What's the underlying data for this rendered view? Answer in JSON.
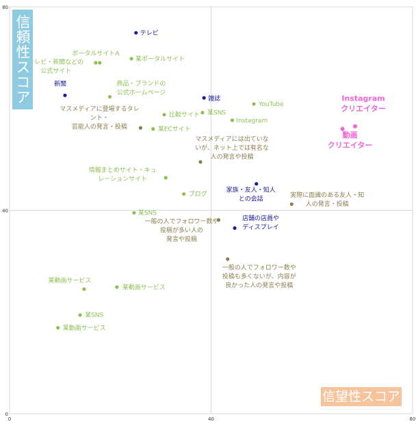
{
  "badges": {
    "y": "信頼性スコア",
    "x": "信望性スコア"
  },
  "chart_data": {
    "type": "scatter",
    "xlim": [
      0,
      80
    ],
    "ylim": [
      0,
      80
    ],
    "x_ticks": [
      "0",
      "40",
      "80"
    ],
    "y_ticks": [
      "0",
      "40",
      "80"
    ],
    "reference_lines": {
      "x": 40,
      "y": 40
    },
    "colors": {
      "green": "#8cc152",
      "navy": "#1a1a9e",
      "olive": "#8b7d4f",
      "pink": "#f263d8"
    },
    "points": [
      {
        "x": 25.1,
        "y": 74.9,
        "color": "navy",
        "label": [
          "テレビ"
        ]
      },
      {
        "x": 17.1,
        "y": 69.0,
        "color": "green",
        "label": [
          "ポータルサイトA"
        ]
      },
      {
        "x": 24.2,
        "y": 69.8,
        "color": "green",
        "label": [
          "某ポータルサイト"
        ]
      },
      {
        "x": 17.9,
        "y": 69.0,
        "color": "green",
        "label": [
          "テレビ・新聞などの",
          "公式サイト"
        ]
      },
      {
        "x": 11.0,
        "y": 62.6,
        "color": "navy",
        "label": [
          "新聞"
        ]
      },
      {
        "x": 19.9,
        "y": 62.3,
        "color": "green",
        "label": [
          "商品・ブランドの",
          "公式ホームページ"
        ]
      },
      {
        "x": 38.6,
        "y": 62.1,
        "color": "navy",
        "label": [
          "雑誌"
        ]
      },
      {
        "x": 48.5,
        "y": 60.9,
        "color": "green",
        "label": [
          "YouTube"
        ]
      },
      {
        "x": 30.7,
        "y": 58.8,
        "color": "green",
        "label": [
          "比較サイト"
        ]
      },
      {
        "x": 38.3,
        "y": 59.2,
        "color": "green",
        "label": [
          "某SNS"
        ]
      },
      {
        "x": 44.2,
        "y": 57.7,
        "color": "green",
        "label": [
          "Instagram"
        ]
      },
      {
        "x": 26.0,
        "y": 56.2,
        "color": "olive",
        "label": [
          "マスメディアに登場するタレ",
          "ント・",
          "芸能人の発言・投稿"
        ]
      },
      {
        "x": 28.5,
        "y": 56.0,
        "color": "green",
        "label": [
          "某ECサイト"
        ]
      },
      {
        "x": 68.6,
        "y": 56.5,
        "color": "pink",
        "label": [
          "Instagram",
          "クリエイター"
        ]
      },
      {
        "x": 66.1,
        "y": 56.0,
        "color": "pink",
        "label": [
          "動画",
          "クリエイター"
        ]
      },
      {
        "x": 37.9,
        "y": 49.5,
        "color": "olive",
        "label": [
          "マスメディアには出ていな",
          "いが、ネット上では有名な",
          "人の発言や投稿"
        ]
      },
      {
        "x": 31.0,
        "y": 46.4,
        "color": "green",
        "label": [
          "情報まとめサイト・キュ",
          "レーションサイト"
        ]
      },
      {
        "x": 49.0,
        "y": 45.2,
        "color": "navy",
        "label": [
          "家族・友人・知人",
          "との会話"
        ]
      },
      {
        "x": 34.6,
        "y": 43.2,
        "color": "green",
        "label": [
          "ブログ"
        ]
      },
      {
        "x": 56.0,
        "y": 41.2,
        "color": "olive",
        "label": [
          "実際に面識のある友人・知",
          "人の発言・投稿"
        ]
      },
      {
        "x": 24.7,
        "y": 39.5,
        "color": "green",
        "label": [
          "某SNS"
        ]
      },
      {
        "x": 41.5,
        "y": 38.1,
        "color": "olive",
        "label": [
          "一般の人でフォロワー数や",
          "投稿が多い人の",
          "発言や投稿"
        ]
      },
      {
        "x": 44.7,
        "y": 36.5,
        "color": "navy",
        "label": [
          "店舗の店員や",
          "ディスプレイ"
        ]
      },
      {
        "x": 43.3,
        "y": 30.4,
        "color": "olive",
        "label": [
          "一般の人でフォロワー数や",
          "投稿も多くないが、内容が",
          "良かった人の発言や投稿"
        ]
      },
      {
        "x": 14.8,
        "y": 24.5,
        "color": "green",
        "label": [
          "某動画サービス"
        ]
      },
      {
        "x": 21.3,
        "y": 24.9,
        "color": "green",
        "label": [
          "某動画サービス"
        ]
      },
      {
        "x": 14.0,
        "y": 19.4,
        "color": "green",
        "label": [
          "某SNS"
        ]
      },
      {
        "x": 9.6,
        "y": 16.9,
        "color": "green",
        "label": [
          "某動画サービス"
        ]
      }
    ]
  }
}
